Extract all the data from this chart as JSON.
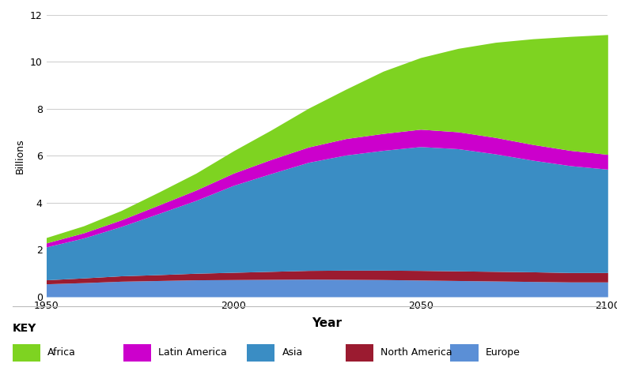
{
  "years": [
    1950,
    1960,
    1970,
    1980,
    1990,
    2000,
    2010,
    2020,
    2030,
    2040,
    2050,
    2060,
    2070,
    2080,
    2090,
    2100
  ],
  "europe": [
    0.55,
    0.6,
    0.66,
    0.69,
    0.72,
    0.73,
    0.74,
    0.75,
    0.74,
    0.73,
    0.71,
    0.69,
    0.67,
    0.65,
    0.63,
    0.63
  ],
  "north_america": [
    0.17,
    0.2,
    0.23,
    0.25,
    0.28,
    0.31,
    0.34,
    0.37,
    0.39,
    0.4,
    0.41,
    0.41,
    0.41,
    0.41,
    0.4,
    0.4
  ],
  "asia": [
    1.4,
    1.7,
    2.1,
    2.6,
    3.1,
    3.7,
    4.16,
    4.6,
    4.9,
    5.1,
    5.27,
    5.2,
    5.0,
    4.75,
    4.55,
    4.4
  ],
  "latin_america": [
    0.17,
    0.22,
    0.28,
    0.36,
    0.44,
    0.52,
    0.6,
    0.65,
    0.7,
    0.72,
    0.74,
    0.72,
    0.7,
    0.67,
    0.65,
    0.63
  ],
  "africa": [
    0.23,
    0.3,
    0.4,
    0.55,
    0.72,
    0.95,
    1.25,
    1.65,
    2.1,
    2.65,
    3.05,
    3.55,
    4.05,
    4.5,
    4.85,
    5.1
  ],
  "colors": {
    "europe": "#5B8FD6",
    "north_america": "#9B1B30",
    "asia": "#3A8DC4",
    "latin_america": "#CC00CC",
    "africa": "#7ED321"
  },
  "xlabel": "Year",
  "ylabel": "Billions",
  "ylim": [
    0,
    12
  ],
  "xlim": [
    1950,
    2100
  ],
  "yticks": [
    0,
    2,
    4,
    6,
    8,
    10,
    12
  ],
  "xticks": [
    1950,
    2000,
    2050,
    2100
  ],
  "key_label": "KEY",
  "legend_items": [
    "Africa",
    "Latin America",
    "Asia",
    "North America",
    "Europe"
  ],
  "legend_colors_order": [
    "africa",
    "latin_america",
    "asia",
    "north_america",
    "europe"
  ],
  "background_color": "#ffffff",
  "grid_color": "#d0d0d0"
}
